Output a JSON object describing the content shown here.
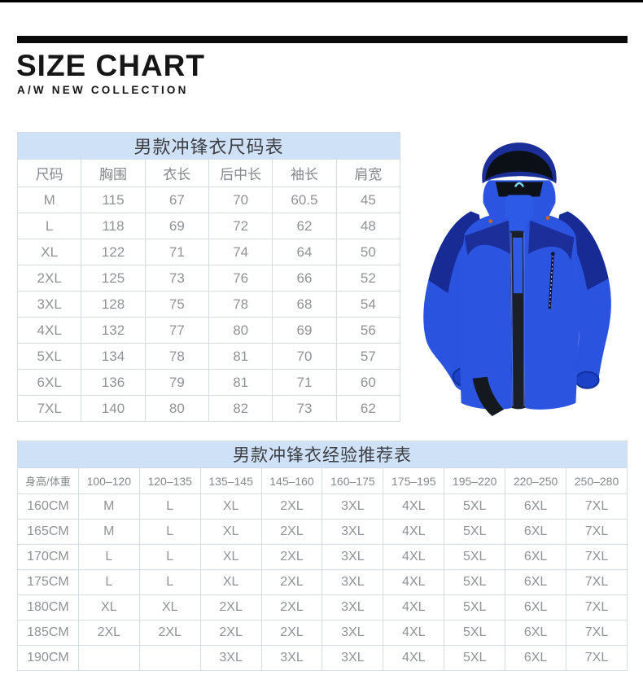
{
  "page": {
    "title": "SIZE CHART",
    "subtitle": "A/W NEW COLLECTION"
  },
  "colors": {
    "accent_band_bg": "#cfe1f7",
    "table_border": "#d6dbe2",
    "cell_text": "#8f9297",
    "title_text": "#161616",
    "jacket_main_blue": "#2a53df",
    "jacket_navy": "#1b2e9a",
    "jacket_hood_dark": "#0b0f16"
  },
  "size_table": {
    "title": "男款冲锋衣尺码表",
    "columns": [
      "尺码",
      "胸围",
      "衣长",
      "后中长",
      "袖长",
      "肩宽"
    ],
    "rows": [
      [
        "M",
        "115",
        "67",
        "70",
        "60.5",
        "45"
      ],
      [
        "L",
        "118",
        "69",
        "72",
        "62",
        "48"
      ],
      [
        "XL",
        "122",
        "71",
        "74",
        "64",
        "50"
      ],
      [
        "2XL",
        "125",
        "73",
        "76",
        "66",
        "52"
      ],
      [
        "3XL",
        "128",
        "75",
        "78",
        "68",
        "54"
      ],
      [
        "4XL",
        "132",
        "77",
        "80",
        "69",
        "56"
      ],
      [
        "5XL",
        "134",
        "78",
        "81",
        "70",
        "57"
      ],
      [
        "6XL",
        "136",
        "79",
        "81",
        "71",
        "60"
      ],
      [
        "7XL",
        "140",
        "80",
        "82",
        "73",
        "62"
      ]
    ]
  },
  "recommend_table": {
    "title": "男款冲锋衣经验推荐表",
    "columns": [
      "身高/体重",
      "100–120",
      "120–135",
      "135–145",
      "145–160",
      "160–175",
      "175–195",
      "195–220",
      "220–250",
      "250–280"
    ],
    "rows": [
      [
        "160CM",
        "M",
        "L",
        "XL",
        "2XL",
        "3XL",
        "4XL",
        "5XL",
        "6XL",
        "7XL"
      ],
      [
        "165CM",
        "M",
        "L",
        "XL",
        "2XL",
        "3XL",
        "4XL",
        "5XL",
        "6XL",
        "7XL"
      ],
      [
        "170CM",
        "L",
        "L",
        "XL",
        "2XL",
        "3XL",
        "4XL",
        "5XL",
        "6XL",
        "7XL"
      ],
      [
        "175CM",
        "L",
        "L",
        "XL",
        "2XL",
        "3XL",
        "4XL",
        "5XL",
        "6XL",
        "7XL"
      ],
      [
        "180CM",
        "XL",
        "XL",
        "2XL",
        "2XL",
        "3XL",
        "4XL",
        "5XL",
        "6XL",
        "7XL"
      ],
      [
        "185CM",
        "2XL",
        "2XL",
        "2XL",
        "2XL",
        "3XL",
        "4XL",
        "5XL",
        "6XL",
        "7XL"
      ],
      [
        "190CM",
        "",
        "",
        "3XL",
        "3XL",
        "3XL",
        "4XL",
        "5XL",
        "6XL",
        "7XL"
      ]
    ]
  },
  "jacket_image": {
    "alt": "mens-blue-3in1-hardshell-jacket"
  }
}
